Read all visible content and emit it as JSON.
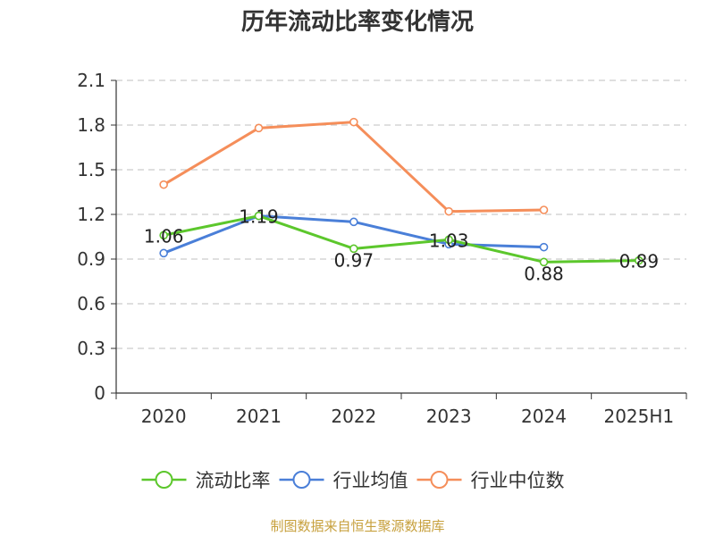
{
  "chart_data": {
    "type": "line",
    "title": "历年流动比率变化情况",
    "categories": [
      "2020",
      "2021",
      "2022",
      "2023",
      "2024",
      "2025H1"
    ],
    "ylim": [
      0,
      2.1
    ],
    "yticks": [
      "0",
      "0.3",
      "0.6",
      "0.9",
      "1.2",
      "1.5",
      "1.8",
      "2.1"
    ],
    "grid": true,
    "legend_position": "bottom",
    "series": [
      {
        "name": "流动比率",
        "color": "#5cc72c",
        "values": [
          1.06,
          1.19,
          0.97,
          1.03,
          0.88,
          0.89
        ],
        "labels": [
          "1.06",
          "1.19",
          "0.97",
          "1.03",
          "0.88",
          "0.89"
        ]
      },
      {
        "name": "行业均值",
        "color": "#4a7fd8",
        "values": [
          0.94,
          1.19,
          1.15,
          1.0,
          0.98,
          null
        ]
      },
      {
        "name": "行业中位数",
        "color": "#f58e5a",
        "values": [
          1.4,
          1.78,
          1.82,
          1.22,
          1.23,
          null
        ]
      }
    ]
  },
  "source_note": "制图数据来自恒生聚源数据库"
}
